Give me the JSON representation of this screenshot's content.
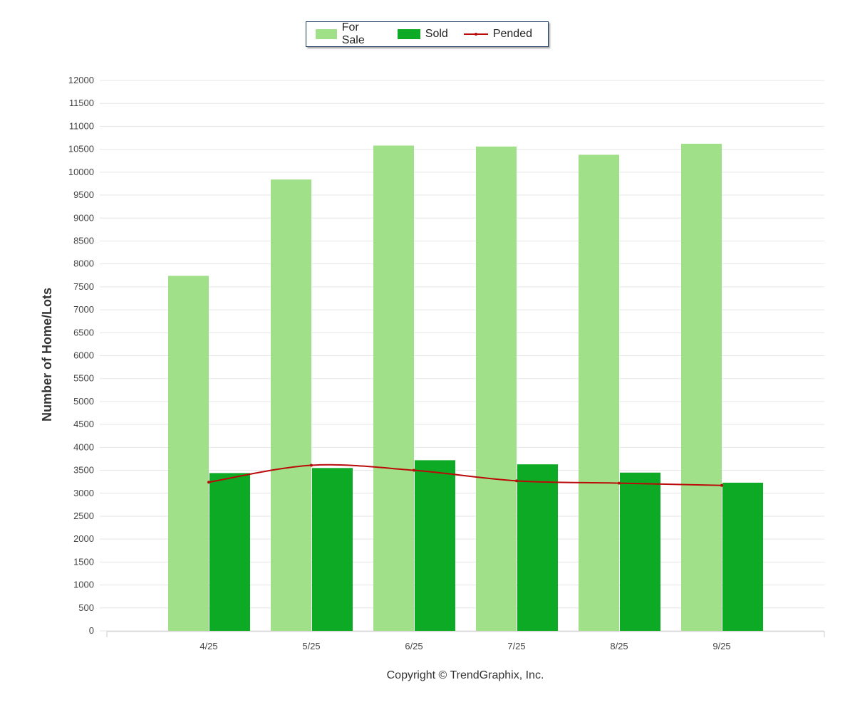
{
  "legend": {
    "for_sale": "For Sale",
    "sold": "Sold",
    "pended": "Pended"
  },
  "copyright": "Copyright © TrendGraphix, Inc.",
  "chart_data": {
    "type": "bar",
    "categories": [
      "4/25",
      "5/25",
      "6/25",
      "7/25",
      "8/25",
      "9/25"
    ],
    "series": [
      {
        "name": "For Sale",
        "type": "bar",
        "color": "#a0e088",
        "values": [
          7740,
          9840,
          10580,
          10560,
          10380,
          10620
        ]
      },
      {
        "name": "Sold",
        "type": "bar",
        "color": "#0daa25",
        "values": [
          3440,
          3550,
          3720,
          3630,
          3450,
          3230
        ]
      },
      {
        "name": "Pended",
        "type": "line",
        "color": "#bb0a0a",
        "values": [
          3240,
          3610,
          3500,
          3270,
          3220,
          3170
        ]
      }
    ],
    "title": "",
    "xlabel": "",
    "ylabel": "Number of Home/Lots",
    "ylim": [
      0,
      12000
    ],
    "ytick_step": 500,
    "grid": true,
    "legend_position": "top-center"
  }
}
